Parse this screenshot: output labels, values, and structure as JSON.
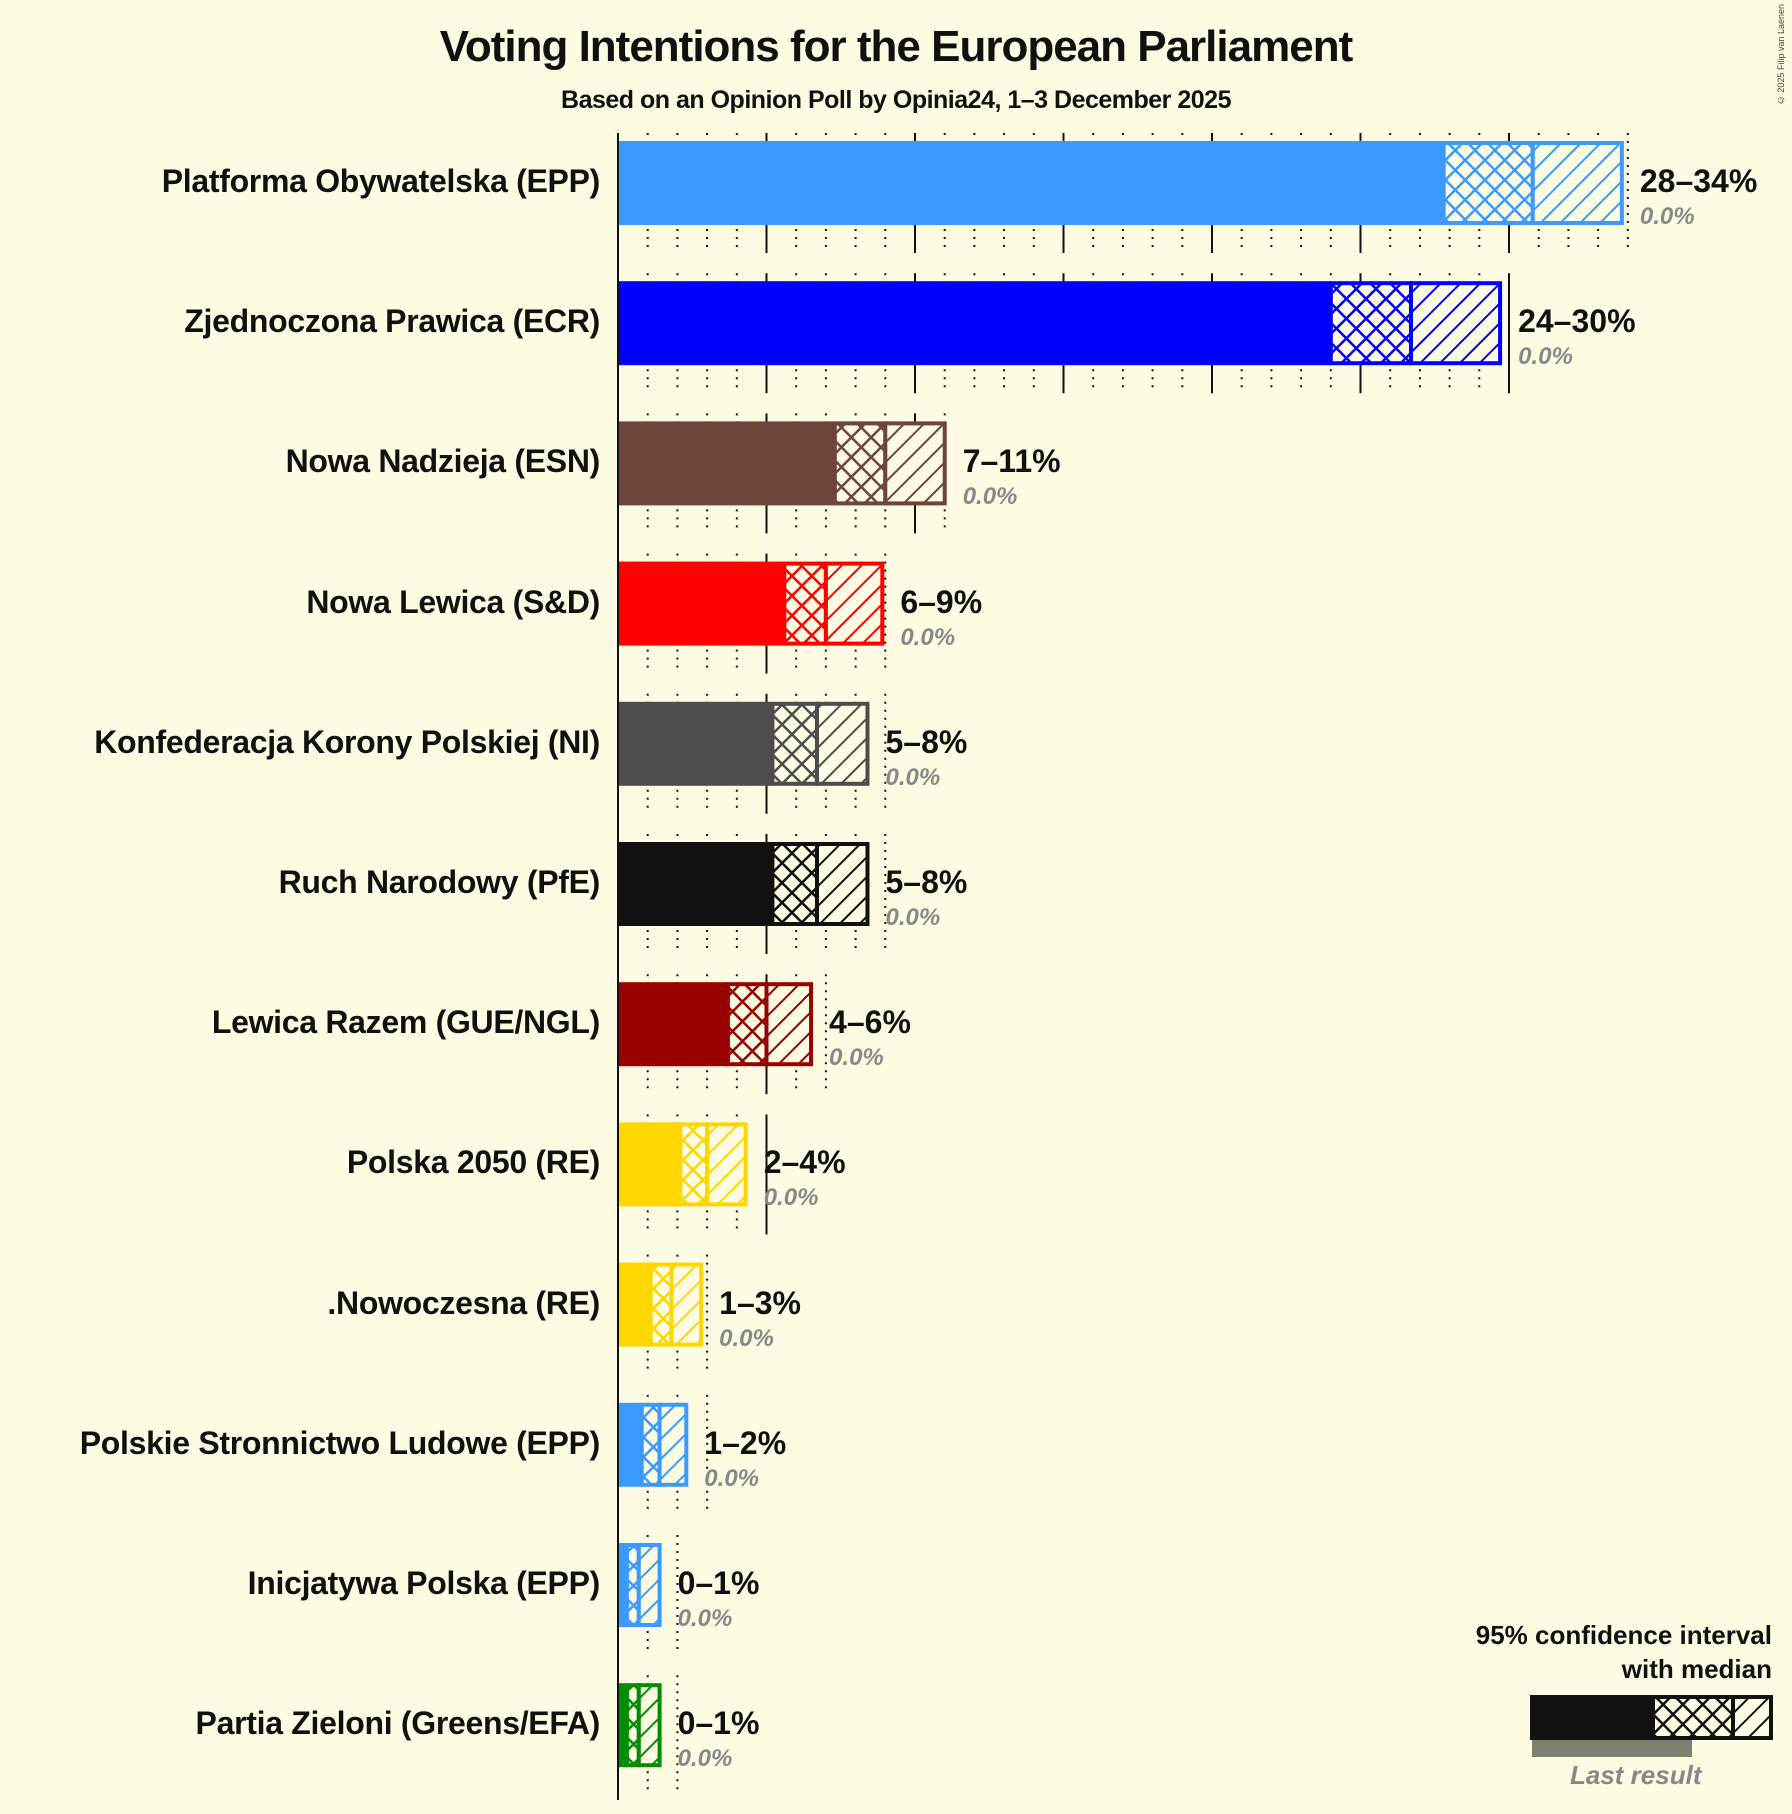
{
  "header": {
    "title": "Voting Intentions for the European Parliament",
    "subtitle": "Based on an Opinion Poll by Opinia24, 1–3 December 2025",
    "copyright": "© 2025 Filip van Laenen"
  },
  "legend": {
    "title_line1": "95% confidence interval",
    "title_line2": "with median",
    "last_result": "Last result"
  },
  "chart_data": {
    "type": "bar",
    "orientation": "horizontal",
    "title": "Voting Intentions for the European Parliament",
    "subtitle": "Based on an Opinion Poll by Opinia24, 1–3 December 2025",
    "xlabel": "",
    "ylabel": "",
    "xlim": [
      0,
      35
    ],
    "grid": {
      "major_every": 5,
      "minor_every": 1
    },
    "legend_position": "bottom-right",
    "categories": [
      "Platforma Obywatelska (EPP)",
      "Zjednoczona Prawica (ECR)",
      "Nowa Nadzieja (ESN)",
      "Nowa Lewica (S&D)",
      "Konfederacja Korony Polskiej (NI)",
      "Ruch Narodowy (PfE)",
      "Lewica Razem (GUE/NGL)",
      "Polska 2050 (RE)",
      ".Nowoczesna (RE)",
      "Polskie Stronnictwo Ludowe (EPP)",
      "Inicjatywa Polska (EPP)",
      "Partia Zieloni (Greens/EFA)"
    ],
    "series": [
      {
        "name": "CI low",
        "values": [
          27.8,
          24.0,
          7.3,
          5.6,
          5.2,
          5.2,
          3.7,
          2.1,
          1.1,
          0.8,
          0.3,
          0.3
        ]
      },
      {
        "name": "Median",
        "values": [
          30.8,
          26.7,
          9.0,
          7.0,
          6.7,
          6.7,
          5.0,
          3.0,
          1.8,
          1.4,
          0.7,
          0.7
        ]
      },
      {
        "name": "CI high",
        "values": [
          33.8,
          29.7,
          11.0,
          8.9,
          8.4,
          8.4,
          6.5,
          4.3,
          2.8,
          2.3,
          1.4,
          1.4
        ]
      },
      {
        "name": "Last result",
        "values": [
          0.0,
          0.0,
          0.0,
          0.0,
          0.0,
          0.0,
          0.0,
          0.0,
          0.0,
          0.0,
          0.0,
          0.0
        ]
      }
    ],
    "range_labels": [
      "28–34%",
      "24–30%",
      "7–11%",
      "6–9%",
      "5–8%",
      "5–8%",
      "4–6%",
      "2–4%",
      "1–3%",
      "1–2%",
      "0–1%",
      "0–1%"
    ],
    "last_labels": [
      "0.0%",
      "0.0%",
      "0.0%",
      "0.0%",
      "0.0%",
      "0.0%",
      "0.0%",
      "0.0%",
      "0.0%",
      "0.0%",
      "0.0%",
      "0.0%"
    ],
    "colors": [
      "#3A9AFF",
      "#0000FF",
      "#6E4539",
      "#FF0000",
      "#4D4D4D",
      "#111111",
      "#990000",
      "#FFD700",
      "#FFD700",
      "#3A9AFF",
      "#3A9AFF",
      "#008E00"
    ]
  }
}
